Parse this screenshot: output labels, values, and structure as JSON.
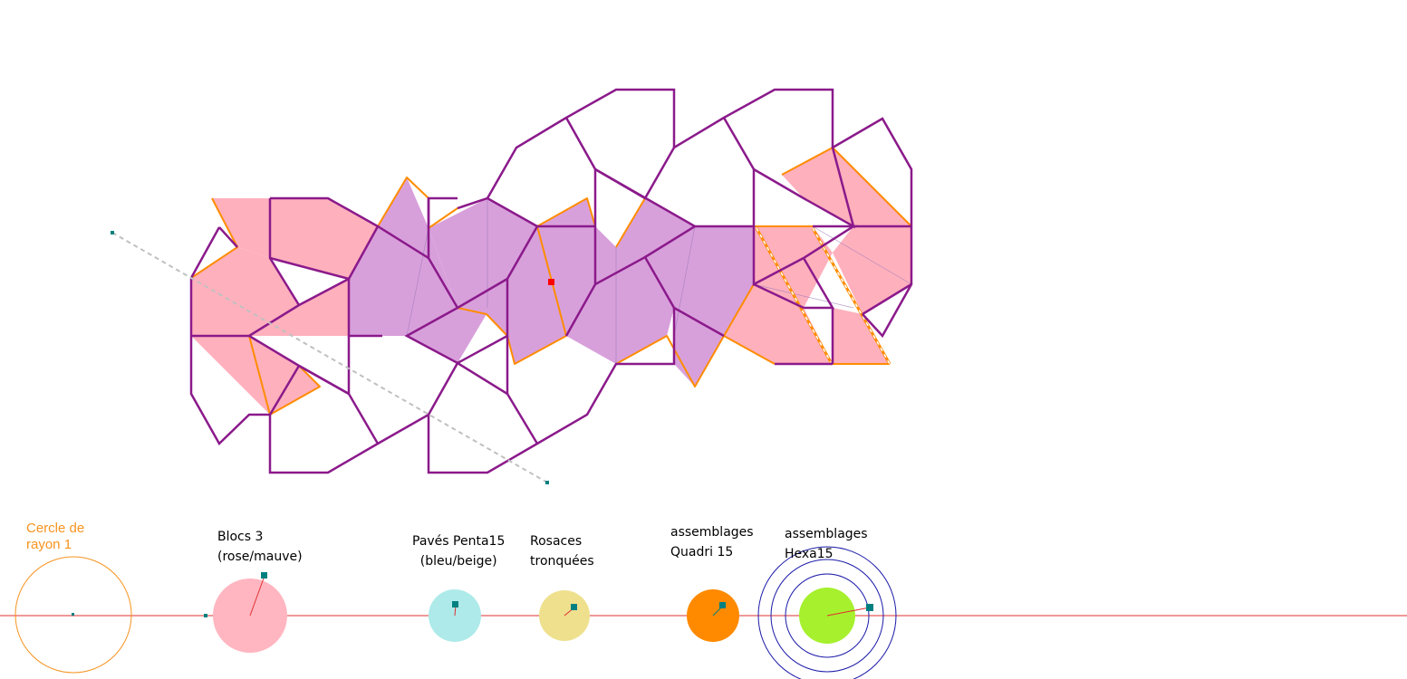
{
  "colors": {
    "purple": "#8b1a8b",
    "orange": "#ff8c00",
    "pink_fill": "#ffb0bd",
    "mauve_fill": "#d8a0db",
    "axis": "#e03030",
    "handle": "#008080",
    "blue_ring": "#1a1aa8",
    "dashed": "#c0c0c0"
  },
  "labels": {
    "cercle_line1": "Cercle de",
    "cercle_line2": "rayon 1",
    "blocs_line1": "Blocs 3",
    "blocs_line2": "(rose/mauve)",
    "paves_line1": "Pavés Penta15",
    "paves_line2": "(bleu/beige)",
    "rosaces_line1": "Rosaces",
    "rosaces_line2": "tronquées",
    "quadri_line1": "assemblages",
    "quadri_line2": "Quadri 15",
    "hexa_line1": "assemblages",
    "hexa_line2": "Hexa15"
  },
  "sliders": [
    {
      "name": "unit-circle",
      "fill": "none",
      "stroke": "#f7931e"
    },
    {
      "name": "blocs-slider",
      "fill": "#ffb6c1"
    },
    {
      "name": "paves-slider",
      "fill": "#aeeaea"
    },
    {
      "name": "rosaces-slider",
      "fill": "#efe08e"
    },
    {
      "name": "quadri-slider",
      "fill": "#ff8a00"
    },
    {
      "name": "hexa-slider",
      "fill": "#a6f02e"
    }
  ]
}
